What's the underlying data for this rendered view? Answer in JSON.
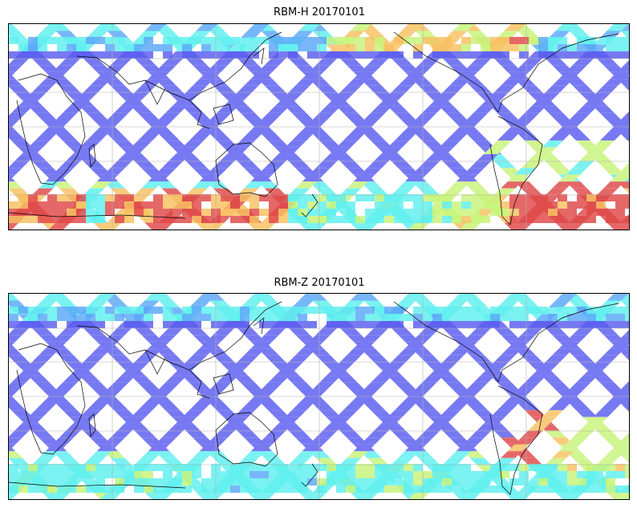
{
  "figure": {
    "panels": [
      {
        "title": "RBM-H 20170101",
        "variant": "H"
      },
      {
        "title": "RBM-Z 20170101",
        "variant": "Z"
      }
    ]
  },
  "colors": {
    "low": "#5a5cf0",
    "mid_low": "#5aa8f8",
    "mid": "#5ef0ee",
    "mid_high": "#c8f47a",
    "high": "#f8c060",
    "max": "#e04848",
    "coast": "#000000",
    "grid": "#b0b0b0"
  }
}
